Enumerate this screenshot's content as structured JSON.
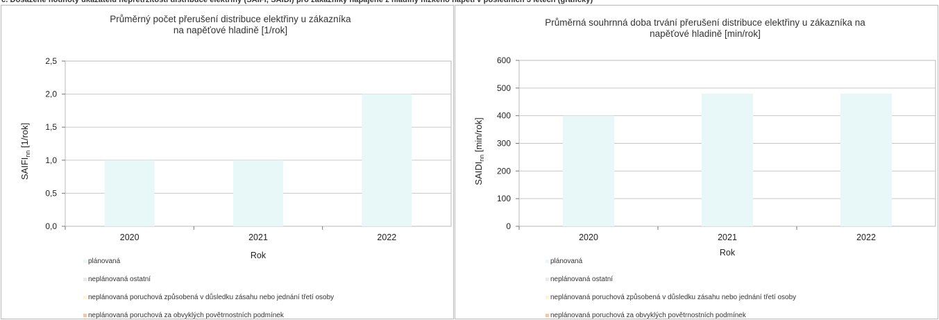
{
  "header": {
    "text": "c. Dosažené hodnoty ukazatelů nepřetržitosti distribuce elektřiny (SAIFI, SAIDI) pro zákazníky napájené z hladiny nízkého napětí v posledních 3 letech (grafický)"
  },
  "colors": {
    "planned": "#e8f7f7",
    "unplanned_other": "#eaeaea",
    "third_party": "#fff6d0",
    "weather": "#f3c9a4",
    "gridline": "#c8c8c8",
    "plot_border": "#b8b8b8"
  },
  "legend": [
    {
      "label": "plánovaná",
      "color": "#e8f7f7"
    },
    {
      "label": "neplánovaná ostatní",
      "color": "#eaeaea"
    },
    {
      "label": "neplánovaná poruchová způsobená v důsledku zásahu nebo jednání třetí osoby",
      "color": "#fff6d0"
    },
    {
      "label": "neplánovaná poruchová za obvyklých povětrnostních podmínek",
      "color": "#f3c9a4"
    }
  ],
  "chart_data": [
    {
      "type": "bar",
      "title": "Průměrný počet přerušení distribuce elektřiny u zákazníka na napěťové hladině [1/rok]",
      "title_lines": [
        "Průměrný počet přerušení distribuce elektřiny u zákazníka",
        "na napěťové hladině [1/rok]"
      ],
      "xlabel": "Rok",
      "ylabel_main": "SAIFI",
      "ylabel_sub": "nn",
      "ylabel_unit": " [1/rok]",
      "categories": [
        "2020",
        "2021",
        "2022"
      ],
      "series": [
        {
          "name": "plánovaná",
          "values": [
            1.0,
            1.0,
            2.0
          ]
        }
      ],
      "ylim": [
        0,
        2.5
      ],
      "yticks": [
        "0,0",
        "0,5",
        "1,0",
        "1,5",
        "2,0",
        "2,5"
      ],
      "grid": true,
      "legend_position": "bottom"
    },
    {
      "type": "bar",
      "title": "Průměrná souhrnná doba trvání přerušení distribuce elektřiny u zákazníka na napěťové hladině [min/rok]",
      "title_lines": [
        "Průměrná souhrnná doba trvání přerušení distribuce elektřiny u zákazníka na",
        "napěťové hladině [min/rok]"
      ],
      "xlabel": "Rok",
      "ylabel_main": "SAIDI",
      "ylabel_sub": "nn",
      "ylabel_unit": " [min/rok]",
      "categories": [
        "2020",
        "2021",
        "2022"
      ],
      "series": [
        {
          "name": "plánovaná",
          "values": [
            400,
            480,
            480
          ]
        }
      ],
      "ylim": [
        0,
        600
      ],
      "yticks": [
        "0",
        "100",
        "200",
        "300",
        "400",
        "500",
        "600"
      ],
      "grid": true,
      "legend_position": "bottom"
    }
  ]
}
